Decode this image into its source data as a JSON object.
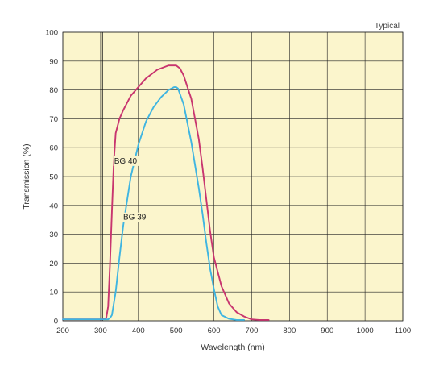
{
  "chart_data": {
    "type": "line",
    "annotation": "Typical",
    "xlabel": "Wavelength (nm)",
    "ylabel": "Transmission (%)",
    "xlim": [
      200,
      1100
    ],
    "ylim": [
      0,
      100
    ],
    "x_ticks": [
      200,
      300,
      400,
      500,
      600,
      700,
      800,
      900,
      1000,
      1100
    ],
    "y_ticks": [
      0,
      10,
      20,
      30,
      40,
      50,
      60,
      70,
      80,
      90,
      100
    ],
    "grid": true,
    "reference_line_x": 305,
    "colors": {
      "background": "#fbf5cc",
      "grid": "#222222",
      "BG 40": "#c8356f",
      "BG 39": "#3fb5e1"
    },
    "series": [
      {
        "name": "BG 40",
        "x": [
          200,
          305,
          315,
          320,
          325,
          330,
          335,
          340,
          350,
          360,
          380,
          400,
          420,
          450,
          480,
          500,
          510,
          520,
          540,
          560,
          570,
          580,
          590,
          600,
          620,
          640,
          660,
          680,
          700,
          720,
          745
        ],
        "y": [
          0.5,
          0.5,
          1,
          5,
          20,
          38,
          55,
          65,
          70,
          73,
          78,
          81,
          84,
          87,
          88.5,
          88.5,
          87.5,
          85,
          77,
          63,
          53,
          42,
          31,
          22,
          12,
          6,
          3,
          1.5,
          0.5,
          0.3,
          0.3
        ]
      },
      {
        "name": "BG 39",
        "x": [
          200,
          315,
          320,
          325,
          330,
          340,
          350,
          360,
          380,
          400,
          420,
          440,
          460,
          480,
          495,
          500,
          505,
          520,
          540,
          560,
          570,
          580,
          590,
          600,
          610,
          620,
          640,
          660,
          680
        ],
        "y": [
          0.5,
          0.5,
          0.5,
          1,
          2,
          10,
          22,
          33,
          50,
          61,
          69,
          74,
          77.5,
          80,
          81,
          81,
          80.5,
          75,
          62,
          46,
          37,
          27,
          18,
          11,
          5,
          2,
          0.7,
          0.3,
          0.3
        ]
      }
    ],
    "series_labels": [
      {
        "text": "BG 40",
        "x": 336,
        "y": 54.5
      },
      {
        "text": "BG 39",
        "x": 360,
        "y": 35
      }
    ]
  }
}
